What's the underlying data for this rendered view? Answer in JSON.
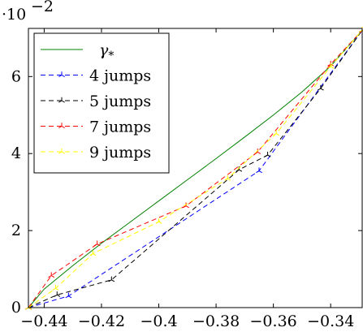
{
  "chart_data": {
    "type": "line",
    "title": "",
    "xlabel": "",
    "ylabel": "",
    "y_scale_note": "·10^-2",
    "xlim": [
      -0.4455,
      -0.329
    ],
    "ylim": [
      0,
      7.25
    ],
    "x_ticks": [
      -0.44,
      -0.42,
      -0.4,
      -0.38,
      -0.36,
      -0.34
    ],
    "x_tick_labels": [
      "−0.44",
      "−0.42",
      "−0.4",
      "−0.38",
      "−0.36",
      "−0.34"
    ],
    "y_ticks": [
      0,
      2,
      4,
      6
    ],
    "y_tick_labels": [
      "0",
      "2",
      "4",
      "6"
    ],
    "grid": false,
    "legend_position": "top-left",
    "series": [
      {
        "name": "γ*",
        "color": "#008000",
        "style": "solid",
        "marker": "none",
        "x": [
          -0.4455,
          -0.44,
          -0.43,
          -0.42,
          -0.41,
          -0.4,
          -0.39,
          -0.38,
          -0.37,
          -0.36,
          -0.35,
          -0.34,
          -0.329
        ],
        "y": [
          0.0,
          0.48,
          1.09,
          1.67,
          2.22,
          2.77,
          3.32,
          3.87,
          4.43,
          5.0,
          5.6,
          6.27,
          7.2
        ]
      },
      {
        "name": "4 jumps",
        "color": "#0000ff",
        "style": "dashed",
        "marker": "tri",
        "x": [
          -0.4455,
          -0.4315,
          -0.365,
          -0.329
        ],
        "y": [
          0.0,
          0.3,
          3.55,
          7.2
        ]
      },
      {
        "name": "5 jumps",
        "color": "#000000",
        "style": "dashed",
        "marker": "tri",
        "x": [
          -0.4455,
          -0.4355,
          -0.4165,
          -0.372,
          -0.362,
          -0.3435,
          -0.329
        ],
        "y": [
          0.0,
          0.33,
          0.72,
          3.58,
          3.96,
          5.69,
          7.2
        ]
      },
      {
        "name": "7 jumps",
        "color": "#ff0000",
        "style": "dashed",
        "marker": "tri",
        "x": [
          -0.4455,
          -0.4375,
          -0.4215,
          -0.3905,
          -0.3655,
          -0.34,
          -0.329
        ],
        "y": [
          0.0,
          0.83,
          1.65,
          2.64,
          4.04,
          6.32,
          7.2
        ]
      },
      {
        "name": "9 jumps",
        "color": "#ffff00",
        "style": "dashed",
        "marker": "tri",
        "x": [
          -0.4455,
          -0.436,
          -0.423,
          -0.4,
          -0.376,
          -0.359,
          -0.34,
          -0.329
        ],
        "y": [
          0.0,
          0.5,
          1.4,
          2.23,
          3.35,
          4.52,
          6.26,
          7.2
        ]
      }
    ]
  }
}
